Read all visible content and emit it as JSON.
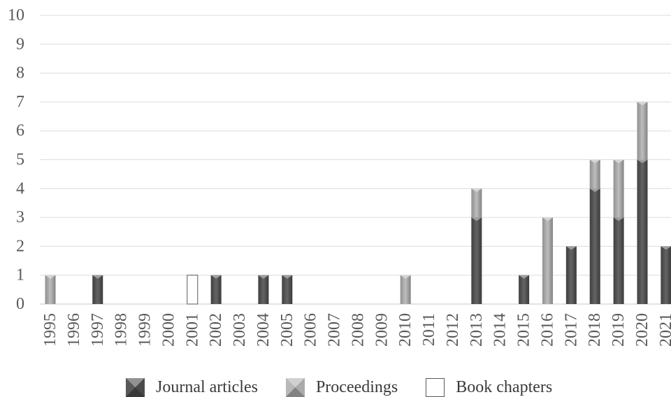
{
  "chart_data": {
    "type": "bar",
    "stacked": true,
    "categories": [
      "1995",
      "1996",
      "1997",
      "1998",
      "1999",
      "2000",
      "2001",
      "2002",
      "2003",
      "2004",
      "2005",
      "2006",
      "2007",
      "2008",
      "2009",
      "2010",
      "2011",
      "2012",
      "2013",
      "2014",
      "2015",
      "2016",
      "2017",
      "2018",
      "2019",
      "2020",
      "2021"
    ],
    "series": [
      {
        "name": "Journal articles",
        "color": "#4f4f4f",
        "values": [
          0,
          0,
          1,
          0,
          0,
          0,
          0,
          1,
          0,
          1,
          1,
          0,
          0,
          0,
          0,
          0,
          0,
          0,
          3,
          0,
          1,
          0,
          2,
          4,
          3,
          5,
          2
        ]
      },
      {
        "name": "Proceedings",
        "color": "#b4b4b4",
        "values": [
          1,
          0,
          0,
          0,
          0,
          0,
          0,
          0,
          0,
          0,
          0,
          0,
          0,
          0,
          0,
          1,
          0,
          0,
          1,
          0,
          0,
          3,
          0,
          1,
          2,
          2,
          0
        ]
      },
      {
        "name": "Book chapters",
        "color": "#ffffff",
        "outline": "#595959",
        "values": [
          0,
          0,
          0,
          0,
          0,
          0,
          1,
          0,
          0,
          0,
          0,
          0,
          0,
          0,
          0,
          0,
          0,
          0,
          0,
          0,
          0,
          0,
          0,
          0,
          0,
          0,
          0
        ]
      }
    ],
    "ylim": [
      0,
      10
    ],
    "yticks": [
      0,
      1,
      2,
      3,
      4,
      5,
      6,
      7,
      8,
      9,
      10
    ],
    "grid": true,
    "legend_position": "bottom"
  }
}
